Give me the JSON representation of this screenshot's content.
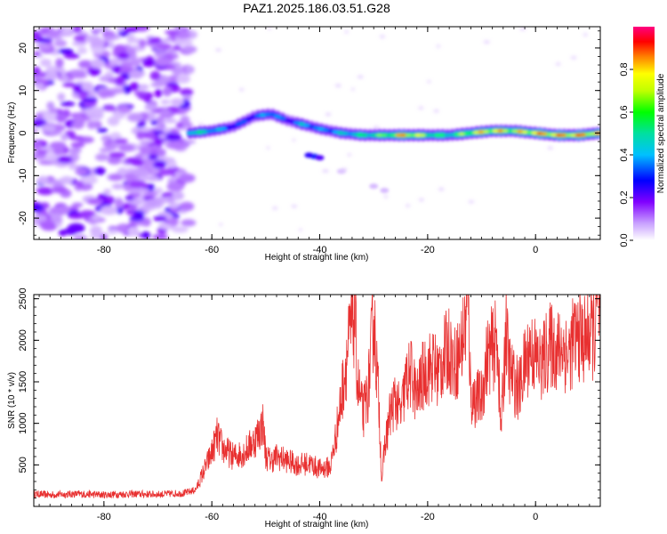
{
  "title": "PAZ1.2025.186.03.51.G28",
  "chart_data": [
    {
      "type": "heatmap",
      "xlabel": "Height of straight line (km)",
      "ylabel": "Frequency (Hz)",
      "xlim": [
        -93,
        12
      ],
      "ylim": [
        -25,
        25
      ],
      "xticks": [
        "-80",
        "-60",
        "-40",
        "-20",
        "0"
      ],
      "yticks": [
        "20",
        "10",
        "0",
        "-10",
        "-20"
      ],
      "colorbar": {
        "label": "Normalized spectral amplitude",
        "range": [
          0.0,
          1.0
        ],
        "ticks": [
          "0.0",
          "0.2",
          "0.4",
          "0.6",
          "0.8"
        ]
      },
      "noise_region_x": [
        -93,
        -64
      ],
      "signal_track": {
        "x": [
          -64,
          -60,
          -56,
          -52,
          -49,
          -46,
          -43,
          -40,
          -36,
          -32,
          -28,
          -24,
          -20,
          -16,
          -12,
          -8,
          -4,
          0,
          4,
          8,
          12
        ],
        "frequency": [
          0,
          0.5,
          1.5,
          4,
          4.5,
          3,
          2,
          1,
          0,
          -0.5,
          -0.5,
          -0.5,
          -0.5,
          -0.5,
          0,
          0.5,
          0.5,
          0,
          -0.5,
          -0.5,
          0
        ],
        "amplitude": [
          0.6,
          0.5,
          0.35,
          0.35,
          0.5,
          0.3,
          0.5,
          0.4,
          0.5,
          0.6,
          0.7,
          0.95,
          0.7,
          0.6,
          0.8,
          0.9,
          0.8,
          0.95,
          0.95,
          0.95,
          0.9
        ]
      }
    },
    {
      "type": "line",
      "xlabel": "Height of straight line (km)",
      "ylabel": "SNR (10 * v/v)",
      "xlim": [
        -93,
        12
      ],
      "ylim": [
        0,
        2550
      ],
      "xticks": [
        "-80",
        "-60",
        "-40",
        "-20",
        "0"
      ],
      "yticks": [
        "500",
        "1000",
        "1500",
        "2000",
        "2500"
      ],
      "color": "#e83030",
      "series": [
        {
          "x": [
            -93,
            -90,
            -85,
            -80,
            -75,
            -70,
            -65,
            -63,
            -62,
            -60,
            -59,
            -58,
            -56,
            -54,
            -52,
            -50.5,
            -50,
            -49,
            -48,
            -46,
            -44,
            -42,
            -40,
            -38,
            -37,
            -36,
            -35,
            -34,
            -33.5,
            -33,
            -32,
            -31,
            -30,
            -29,
            -28.5,
            -28,
            -27,
            -26,
            -25,
            -24,
            -23,
            -22,
            -21,
            -20,
            -19,
            -18,
            -17,
            -16,
            -15,
            -14,
            -13,
            -12.5,
            -12,
            -11,
            -10,
            -9,
            -8,
            -7,
            -6.5,
            -6,
            -5.5,
            -5,
            -4,
            -3,
            -2,
            -1,
            0,
            1,
            2,
            3,
            4,
            5,
            6,
            7,
            8,
            9,
            10,
            11,
            11.5,
            12
          ],
          "y": [
            150,
            140,
            150,
            140,
            150,
            145,
            160,
            200,
            350,
            650,
            850,
            700,
            600,
            650,
            800,
            1000,
            600,
            550,
            600,
            550,
            500,
            520,
            450,
            480,
            850,
            1300,
            1800,
            2200,
            2300,
            1500,
            1100,
            1400,
            2300,
            1200,
            300,
            700,
            1100,
            1300,
            1100,
            1500,
            1600,
            1300,
            1550,
            1650,
            1700,
            1600,
            1800,
            1900,
            1700,
            1850,
            2200,
            2550,
            1300,
            1300,
            1300,
            1800,
            1900,
            2000,
            900,
            1400,
            2200,
            1700,
            1500,
            1400,
            1700,
            1900,
            1800,
            1700,
            1850,
            1950,
            1850,
            1950,
            1800,
            2000,
            2050,
            2000,
            2100,
            2100,
            2550,
            2150
          ]
        }
      ]
    }
  ]
}
